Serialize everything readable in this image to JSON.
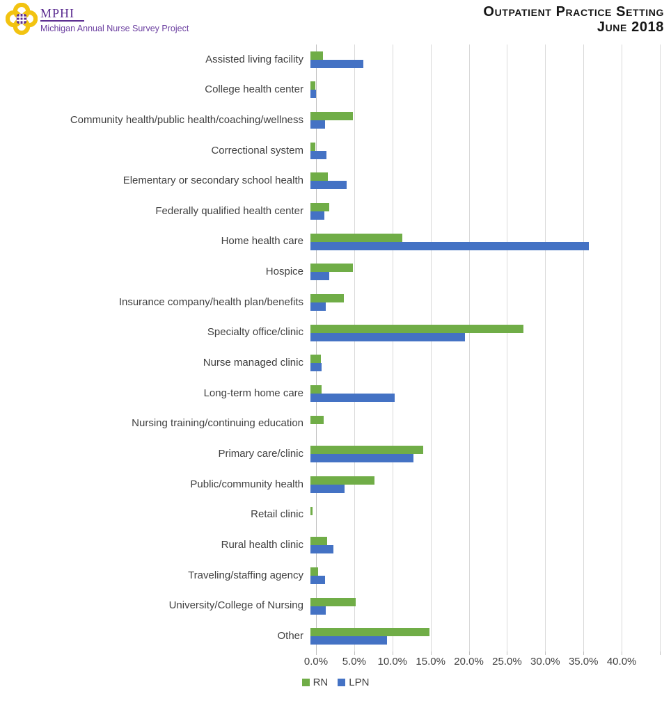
{
  "header": {
    "logo_org": "MPHI",
    "logo_subtitle": "Michigan Annual Nurse Survey Project",
    "title_line1": "Outpatient Practice Setting",
    "title_line2": "June 2018",
    "brand_gold": "#f2c311",
    "brand_purple": "#5b2c90"
  },
  "chart_data": {
    "type": "bar",
    "orientation": "horizontal",
    "title": "Outpatient Practice Setting",
    "subtitle": "June 2018",
    "categories": [
      "Assisted living facility",
      "College health center",
      "Community health/public health/coaching/wellness",
      "Correctional system",
      "Elementary or secondary school health",
      "Federally qualified health center",
      "Home health care",
      "Hospice",
      "Insurance company/health plan/benefits",
      "Specialty office/clinic",
      "Nurse managed clinic",
      "Long-term home care",
      "Nursing training/continuing education",
      "Primary care/clinic",
      "Public/community health",
      "Retail clinic",
      "Rural health clinic",
      "Traveling/staffing agency",
      "University/College of Nursing",
      "Other"
    ],
    "series": [
      {
        "name": "RN",
        "color": "#70ad47",
        "values": [
          1.6,
          0.6,
          5.6,
          0.6,
          2.3,
          2.5,
          12.0,
          5.6,
          4.4,
          27.9,
          1.4,
          1.5,
          1.7,
          14.8,
          8.4,
          0.3,
          2.2,
          1.0,
          5.9,
          15.6
        ]
      },
      {
        "name": "LPN",
        "color": "#4472c4",
        "values": [
          6.9,
          0.7,
          1.9,
          2.1,
          4.7,
          1.8,
          36.4,
          2.5,
          2.0,
          20.2,
          1.5,
          11.0,
          0.0,
          13.5,
          4.5,
          0.0,
          3.0,
          1.9,
          2.0,
          10.0
        ]
      }
    ],
    "x_tick_labels": [
      "0.0%",
      "5.0%",
      "10.0%",
      "15.0%",
      "20.0%",
      "25.0%",
      "30.0%",
      "35.0%",
      "40.0%"
    ],
    "xlim": [
      0,
      45
    ],
    "grid": true,
    "grid_color": "#d9d9d9",
    "legend_position": "bottom"
  }
}
